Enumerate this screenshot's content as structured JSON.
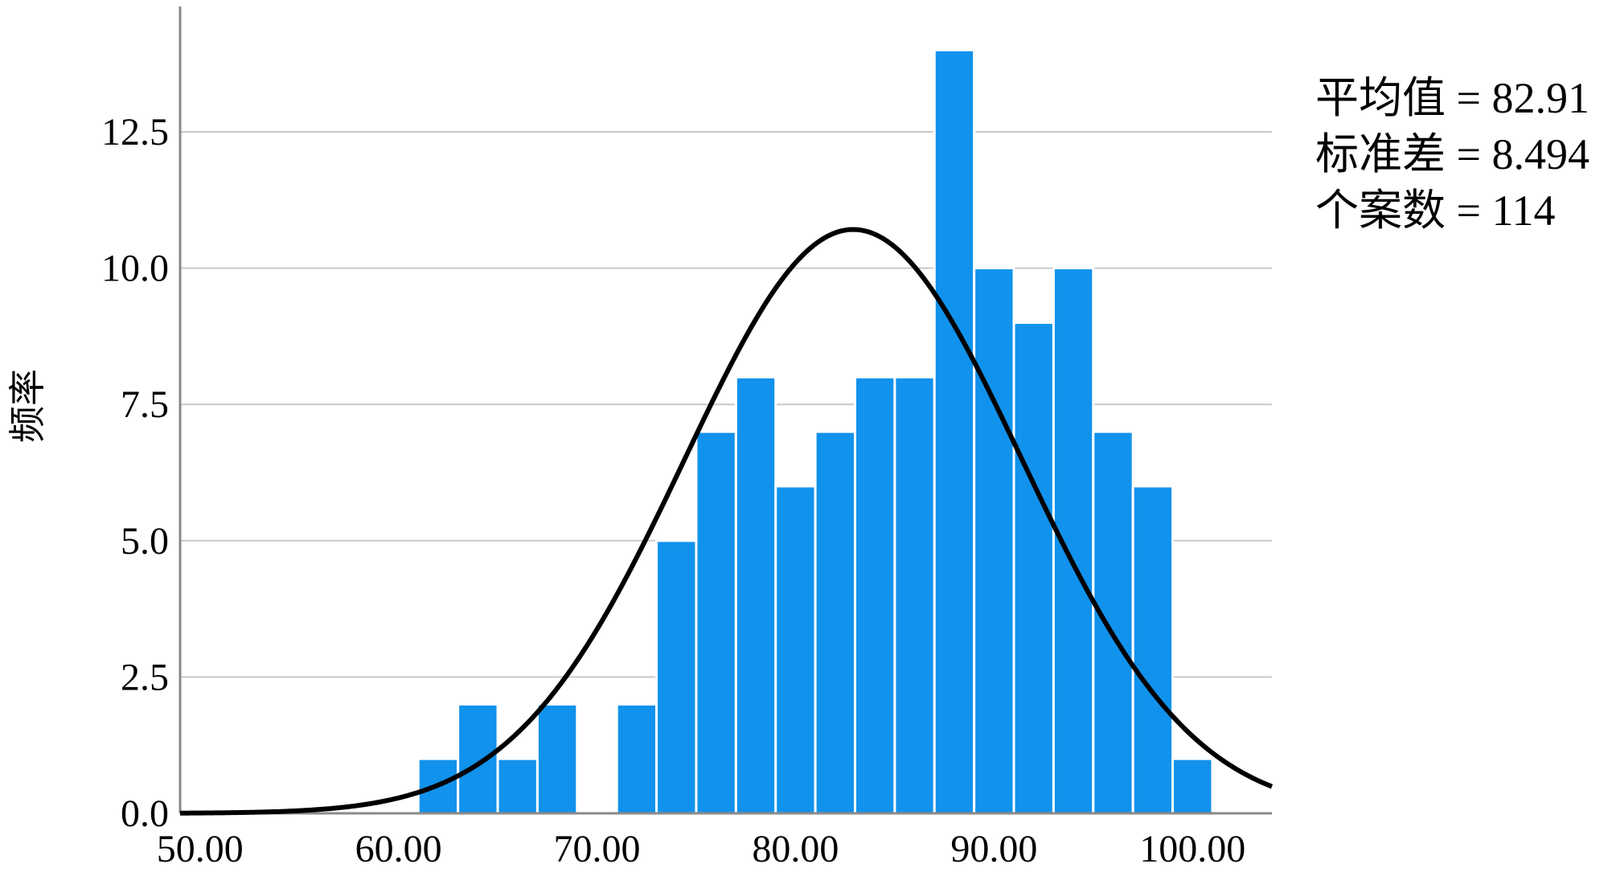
{
  "chart_data": {
    "type": "bar",
    "variant": "histogram",
    "xlabel": "",
    "ylabel": "频率",
    "xlim": [
      49.0,
      104.0
    ],
    "ylim": [
      0,
      14.8
    ],
    "x_ticks": [
      50,
      60,
      70,
      80,
      90,
      100
    ],
    "x_tick_labels": [
      "50.00",
      "60.00",
      "70.00",
      "80.00",
      "90.00",
      "100.00"
    ],
    "y_ticks": [
      0,
      2.5,
      5,
      7.5,
      10,
      12.5
    ],
    "y_tick_labels": [
      "0.0",
      "2.5",
      "5.0",
      "7.5",
      "10.0",
      "12.5"
    ],
    "grid": true,
    "bin_width": 2,
    "bins": [
      {
        "start": 61,
        "end": 63,
        "count": 1
      },
      {
        "start": 63,
        "end": 65,
        "count": 2
      },
      {
        "start": 65,
        "end": 67,
        "count": 1
      },
      {
        "start": 67,
        "end": 69,
        "count": 2
      },
      {
        "start": 69,
        "end": 71,
        "count": 0
      },
      {
        "start": 71,
        "end": 73,
        "count": 2
      },
      {
        "start": 73,
        "end": 75,
        "count": 5
      },
      {
        "start": 75,
        "end": 77,
        "count": 7
      },
      {
        "start": 77,
        "end": 79,
        "count": 8
      },
      {
        "start": 79,
        "end": 81,
        "count": 6
      },
      {
        "start": 81,
        "end": 83,
        "count": 7
      },
      {
        "start": 83,
        "end": 85,
        "count": 8
      },
      {
        "start": 85,
        "end": 87,
        "count": 8
      },
      {
        "start": 87,
        "end": 89,
        "count": 14
      },
      {
        "start": 89,
        "end": 91,
        "count": 10
      },
      {
        "start": 91,
        "end": 93,
        "count": 9
      },
      {
        "start": 93,
        "end": 95,
        "count": 10
      },
      {
        "start": 95,
        "end": 97,
        "count": 7
      },
      {
        "start": 97,
        "end": 99,
        "count": 6
      },
      {
        "start": 99,
        "end": 101,
        "count": 1
      }
    ],
    "normal_curve": {
      "mean": 82.91,
      "std": 8.494,
      "n": 114
    },
    "legend_placement": "top-right",
    "stats": [
      {
        "label": "平均值 = 82.91"
      },
      {
        "label": "标准差 = 8.494"
      },
      {
        "label": "个案数 = 114"
      }
    ]
  },
  "colors": {
    "bar": "#1192ec",
    "curve": "#000000",
    "grid": "#c8c8c8",
    "axis": "#8a8a8a"
  }
}
